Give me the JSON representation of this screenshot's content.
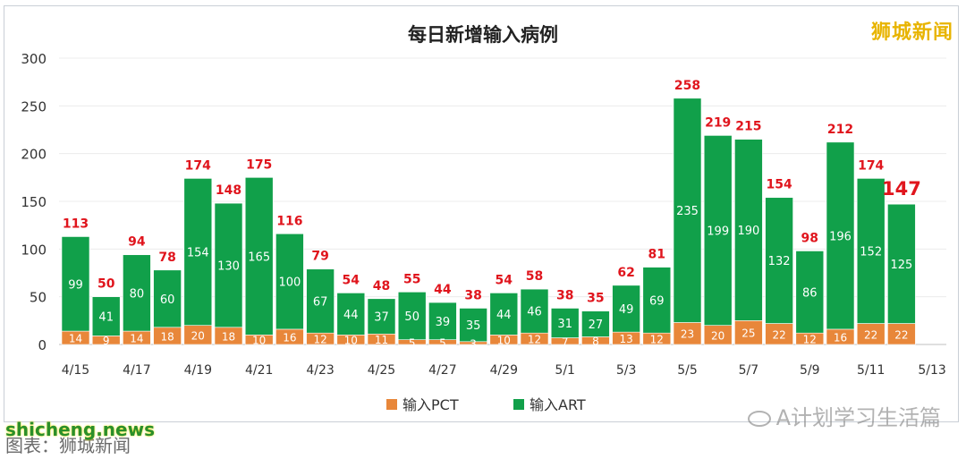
{
  "watermark": "狮城新闻",
  "source_watermark": "A计划学习生活篇",
  "footer": {
    "site": "shicheng.news",
    "note": "图表：狮城新闻"
  },
  "chart_data": {
    "type": "bar",
    "stacked": true,
    "title": "每日新增输入病例",
    "categories": [
      "4/15",
      "4/16",
      "4/17",
      "4/18",
      "4/19",
      "4/20",
      "4/21",
      "4/22",
      "4/23",
      "4/24",
      "4/25",
      "4/26",
      "4/27",
      "4/28",
      "4/29",
      "4/30",
      "5/1",
      "5/2",
      "5/3",
      "5/4",
      "5/5",
      "5/6",
      "5/7",
      "5/8",
      "5/9",
      "5/10",
      "5/11",
      "5/12"
    ],
    "tick_labels": [
      "4/15",
      "4/17",
      "4/19",
      "4/21",
      "4/23",
      "4/25",
      "4/27",
      "4/29",
      "5/1",
      "5/3",
      "5/5",
      "5/7",
      "5/9",
      "5/11",
      "5/13"
    ],
    "series": [
      {
        "name": "输入PCT",
        "color": "#e8873a",
        "values": [
          14,
          9,
          14,
          18,
          20,
          18,
          10,
          16,
          12,
          10,
          11,
          5,
          5,
          3,
          10,
          12,
          7,
          8,
          13,
          12,
          23,
          20,
          25,
          22,
          12,
          16,
          22,
          22
        ]
      },
      {
        "name": "输入ART",
        "color": "#11a04a",
        "values": [
          99,
          41,
          80,
          60,
          154,
          130,
          165,
          100,
          67,
          44,
          37,
          50,
          39,
          35,
          44,
          46,
          31,
          27,
          49,
          69,
          235,
          199,
          190,
          132,
          86,
          196,
          152,
          125
        ]
      }
    ],
    "totals": [
      113,
      50,
      94,
      78,
      174,
      148,
      175,
      116,
      79,
      54,
      48,
      55,
      44,
      38,
      54,
      58,
      38,
      35,
      62,
      81,
      258,
      219,
      215,
      154,
      98,
      212,
      174,
      147
    ],
    "total_label_color": "#e0151d",
    "ylim": [
      0,
      300
    ],
    "yticks": [
      0,
      50,
      100,
      150,
      200,
      250,
      300
    ],
    "grid": true,
    "legend_position": "bottom"
  }
}
